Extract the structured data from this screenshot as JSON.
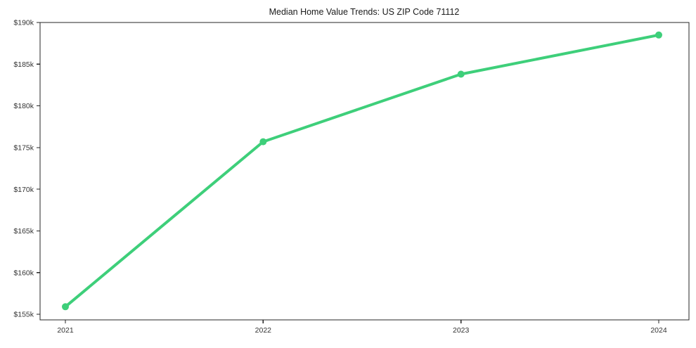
{
  "colors": {
    "line": "#3ecf7a",
    "marker": "#3ecf7a",
    "axis": "#262626",
    "tick_label": "#333333",
    "background": "#ffffff"
  },
  "chart_data": {
    "type": "line",
    "title": "Median Home Value Trends: US ZIP Code 71112",
    "x": [
      "2021",
      "2022",
      "2023",
      "2024"
    ],
    "series": [
      {
        "name": "Median home value",
        "values_usd": [
          155900,
          175700,
          183800,
          188500
        ]
      }
    ],
    "xlabel": "",
    "ylabel": "",
    "ytick_values": [
      190,
      185,
      180,
      175,
      170,
      165,
      160,
      155
    ],
    "ytick_labels": [
      "$190k",
      "$185k",
      "$180k",
      "$175k",
      "$170k",
      "$165k",
      "$160k",
      "$155k"
    ],
    "ylim_ticks": [
      155,
      190
    ],
    "y_unit": "USD thousands",
    "grid": false,
    "legend": "none",
    "marker": "circle"
  }
}
